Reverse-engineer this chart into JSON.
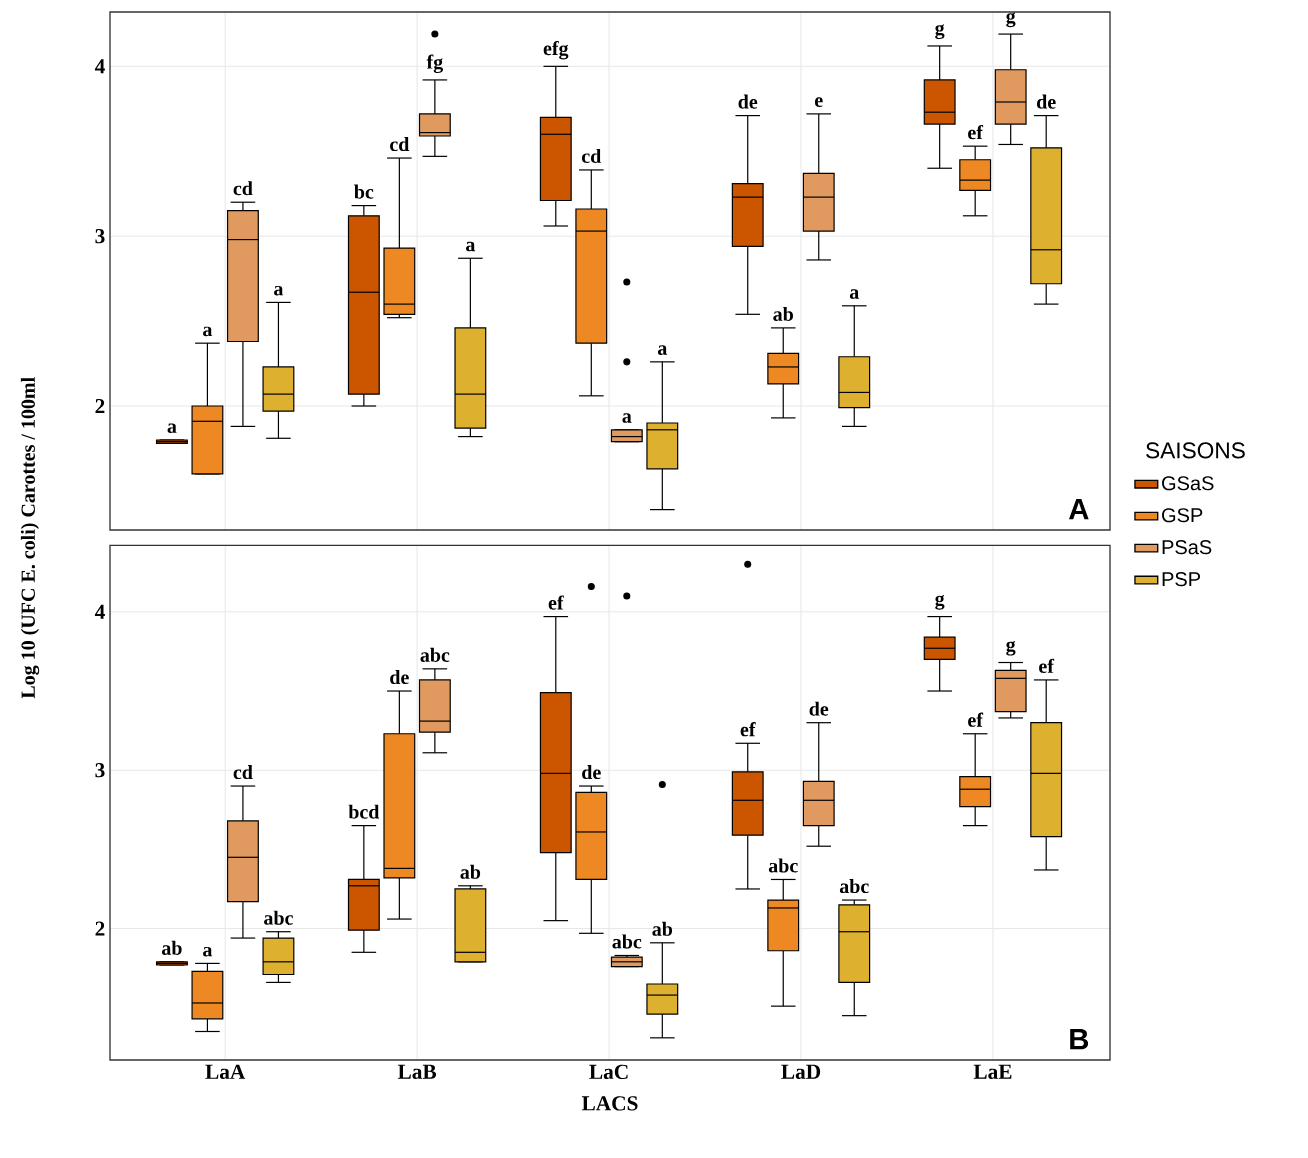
{
  "chart_data": [
    {
      "type": "box",
      "ylabel": "Log 10 (UFC E. coli) Carottes / 100ml",
      "ylim": [
        1.27,
        4.32
      ],
      "yticks": [
        2,
        3,
        4
      ],
      "tick_labels": "y",
      "grid": true,
      "legend": "right",
      "legend_title": "SAISONS",
      "series": [
        {
          "name": "GSaS",
          "color": "#cc5500",
          "boxes": [
            {
              "low": 1.78,
              "q1": 1.78,
              "median": 1.79,
              "q3": 1.8,
              "high": 1.8
            },
            {
              "low": 2.0,
              "q1": 2.07,
              "median": 2.67,
              "q3": 3.12,
              "high": 3.18
            },
            {
              "low": 3.06,
              "q1": 3.21,
              "median": 3.6,
              "q3": 3.7,
              "high": 4.0
            },
            {
              "low": 2.54,
              "q1": 2.94,
              "median": 3.23,
              "q3": 3.31,
              "high": 3.71
            },
            {
              "low": 3.4,
              "q1": 3.66,
              "median": 3.73,
              "q3": 3.92,
              "high": 4.12
            }
          ]
        },
        {
          "name": "GSP",
          "color": "#ee8822",
          "boxes": [
            {
              "low": 1.6,
              "q1": 1.6,
              "median": 1.91,
              "q3": 2.0,
              "high": 2.37
            },
            {
              "low": 2.52,
              "q1": 2.54,
              "median": 2.6,
              "q3": 2.93,
              "high": 3.46
            },
            {
              "low": 2.06,
              "q1": 2.37,
              "median": 3.03,
              "q3": 3.16,
              "high": 3.39
            },
            {
              "low": 1.93,
              "q1": 2.13,
              "median": 2.23,
              "q3": 2.31,
              "high": 2.46
            },
            {
              "low": 3.12,
              "q1": 3.27,
              "median": 3.33,
              "q3": 3.45,
              "high": 3.53
            }
          ]
        },
        {
          "name": "PSaS",
          "color": "#e09a60",
          "boxes": [
            {
              "low": 1.88,
              "q1": 2.38,
              "median": 2.98,
              "q3": 3.15,
              "high": 3.2
            },
            {
              "low": 3.47,
              "q1": 3.59,
              "median": 3.61,
              "q3": 3.72,
              "high": 3.92,
              "outliers": [
                4.19
              ]
            },
            {
              "low": 1.79,
              "q1": 1.79,
              "median": 1.82,
              "q3": 1.86,
              "high": 1.86,
              "outliers": [
                2.73,
                2.26
              ]
            },
            {
              "low": 2.86,
              "q1": 3.03,
              "median": 3.23,
              "q3": 3.37,
              "high": 3.72
            },
            {
              "low": 3.54,
              "q1": 3.66,
              "median": 3.79,
              "q3": 3.98,
              "high": 4.19
            }
          ]
        },
        {
          "name": "PSP",
          "color": "#ddb030",
          "boxes": [
            {
              "low": 1.81,
              "q1": 1.97,
              "median": 2.07,
              "q3": 2.23,
              "high": 2.61
            },
            {
              "low": 1.82,
              "q1": 1.87,
              "median": 2.07,
              "q3": 2.46,
              "high": 2.87
            },
            {
              "low": 1.39,
              "q1": 1.63,
              "median": 1.86,
              "q3": 1.9,
              "high": 2.26
            },
            {
              "low": 1.88,
              "q1": 1.99,
              "median": 2.08,
              "q3": 2.29,
              "high": 2.59
            },
            {
              "low": 2.6,
              "q1": 2.72,
              "median": 2.92,
              "q3": 3.52,
              "high": 3.71
            }
          ]
        }
      ],
      "annotations": [
        "a",
        "a",
        "cd",
        "a",
        "bc",
        "cd",
        "fg",
        "a",
        "efg",
        "cd",
        "a",
        "a",
        "de",
        "ab",
        "e",
        "a",
        "g",
        "ef",
        "g",
        "de",
        "A"
      ]
    },
    {
      "type": "box",
      "categories": [
        "LaA",
        "LaB",
        "LaC",
        "LaD",
        "LaE"
      ],
      "xlabel": "LACS",
      "ylim": [
        1.17,
        4.42
      ],
      "yticks": [
        2,
        3,
        4
      ],
      "grid": true,
      "series": [
        {
          "color": "#cc5500",
          "boxes": [
            {
              "low": 1.77,
              "q1": 1.77,
              "median": 1.78,
              "q3": 1.79,
              "high": 1.79
            },
            {
              "low": 1.85,
              "q1": 1.99,
              "median": 2.27,
              "q3": 2.31,
              "high": 2.65
            },
            {
              "low": 2.05,
              "q1": 2.48,
              "median": 2.98,
              "q3": 3.49,
              "high": 3.97
            },
            {
              "low": 2.25,
              "q1": 2.59,
              "median": 2.81,
              "q3": 2.99,
              "high": 3.17,
              "outliers": [
                4.3
              ]
            },
            {
              "low": 3.5,
              "q1": 3.7,
              "median": 3.77,
              "q3": 3.84,
              "high": 3.97
            }
          ]
        },
        {
          "color": "#ee8822",
          "boxes": [
            {
              "low": 1.35,
              "q1": 1.43,
              "median": 1.53,
              "q3": 1.73,
              "high": 1.78
            },
            {
              "low": 2.06,
              "q1": 2.32,
              "median": 2.38,
              "q3": 3.23,
              "high": 3.5
            },
            {
              "low": 1.97,
              "q1": 2.31,
              "median": 2.61,
              "q3": 2.86,
              "high": 2.9,
              "outliers": [
                4.16
              ]
            },
            {
              "low": 1.51,
              "q1": 1.86,
              "median": 2.13,
              "q3": 2.18,
              "high": 2.31
            },
            {
              "low": 2.65,
              "q1": 2.77,
              "median": 2.88,
              "q3": 2.96,
              "high": 3.23
            }
          ]
        },
        {
          "color": "#e09a60",
          "boxes": [
            {
              "low": 1.94,
              "q1": 2.17,
              "median": 2.45,
              "q3": 2.68,
              "high": 2.9
            },
            {
              "low": 3.11,
              "q1": 3.24,
              "median": 3.31,
              "q3": 3.57,
              "high": 3.64
            },
            {
              "low": 1.76,
              "q1": 1.76,
              "median": 1.79,
              "q3": 1.82,
              "high": 1.83,
              "outliers": [
                4.1
              ]
            },
            {
              "low": 2.52,
              "q1": 2.65,
              "median": 2.81,
              "q3": 2.93,
              "high": 3.3
            },
            {
              "low": 3.33,
              "q1": 3.37,
              "median": 3.58,
              "q3": 3.63,
              "high": 3.68
            }
          ]
        },
        {
          "color": "#ddb030",
          "boxes": [
            {
              "low": 1.66,
              "q1": 1.71,
              "median": 1.79,
              "q3": 1.94,
              "high": 1.98
            },
            {
              "low": 1.79,
              "q1": 1.79,
              "median": 1.85,
              "q3": 2.25,
              "high": 2.27
            },
            {
              "low": 1.31,
              "q1": 1.46,
              "median": 1.58,
              "q3": 1.65,
              "high": 1.91,
              "outliers": [
                2.91
              ]
            },
            {
              "low": 1.45,
              "q1": 1.66,
              "median": 1.98,
              "q3": 2.15,
              "high": 2.18
            },
            {
              "low": 2.37,
              "q1": 2.58,
              "median": 2.98,
              "q3": 3.3,
              "high": 3.57
            }
          ]
        }
      ],
      "annotations": [
        "ab",
        "a",
        "cd",
        "abc",
        "bcd",
        "de",
        "abc",
        "ab",
        "ef",
        "de",
        "abc",
        "ab",
        "ef",
        "abc",
        "de",
        "abc",
        "g",
        "ef",
        "g",
        "ef",
        "B"
      ]
    }
  ]
}
